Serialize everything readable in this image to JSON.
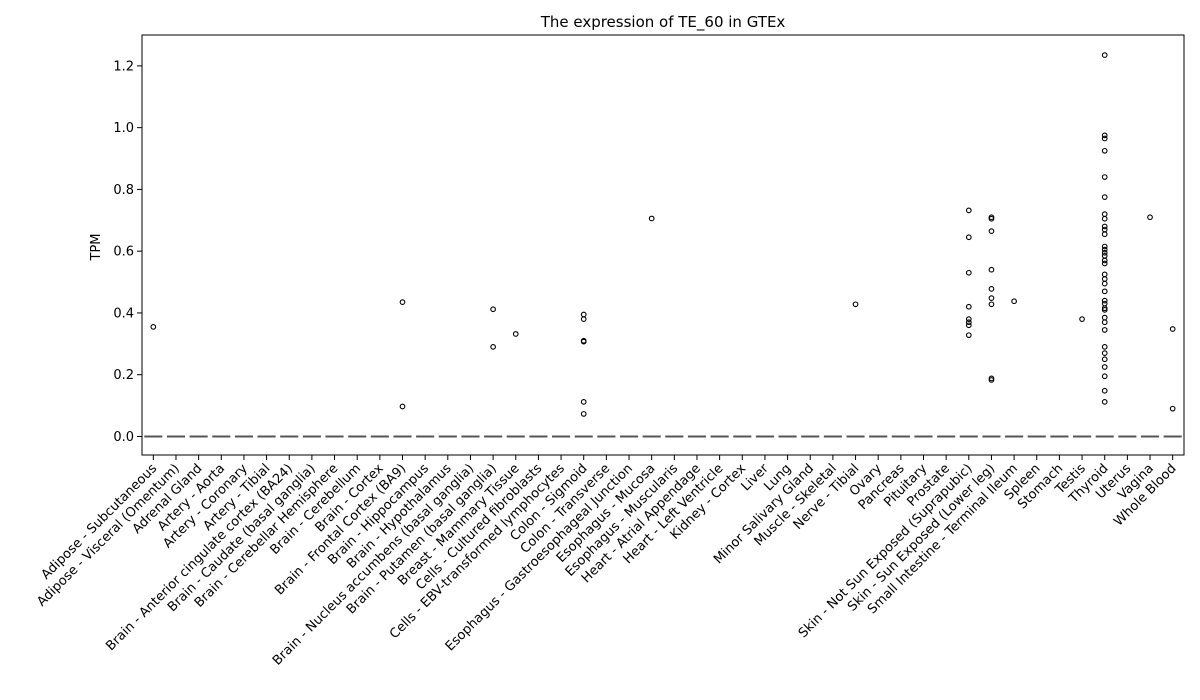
{
  "chart_data": {
    "type": "scatter",
    "title": "The expression of TE_60 in GTEx",
    "xlabel": "",
    "ylabel": "TPM",
    "ylim": [
      -0.06,
      1.3
    ],
    "yticks": [
      "0.0",
      "0.2",
      "0.4",
      "0.6",
      "0.8",
      "1.0",
      "1.2"
    ],
    "grid": false,
    "categories": [
      "Adipose - Subcutaneous",
      "Adipose - Visceral (Omentum)",
      "Adrenal Gland",
      "Artery - Aorta",
      "Artery - Coronary",
      "Artery - Tibial",
      "Brain - Anterior cingulate cortex (BA24)",
      "Brain - Caudate (basal ganglia)",
      "Brain - Cerebellar Hemisphere",
      "Brain - Cerebellum",
      "Brain - Cortex",
      "Brain - Frontal Cortex (BA9)",
      "Brain - Hippocampus",
      "Brain - Hypothalamus",
      "Brain - Nucleus accumbens (basal ganglia)",
      "Brain - Putamen (basal ganglia)",
      "Breast - Mammary Tissue",
      "Cells - Cultured fibroblasts",
      "Cells - EBV-transformed lymphocytes",
      "Colon - Sigmoid",
      "Colon - Transverse",
      "Esophagus - Gastroesophageal Junction",
      "Esophagus - Mucosa",
      "Esophagus - Muscularis",
      "Heart - Atrial Appendage",
      "Heart - Left Ventricle",
      "Kidney - Cortex",
      "Liver",
      "Lung",
      "Minor Salivary Gland",
      "Muscle - Skeletal",
      "Nerve - Tibial",
      "Ovary",
      "Pancreas",
      "Pituitary",
      "Prostate",
      "Skin - Not Sun Exposed (Suprapubic)",
      "Skin - Sun Exposed (Lower leg)",
      "Small Intestine - Terminal Ileum",
      "Spleen",
      "Stomach",
      "Testis",
      "Thyroid",
      "Uterus",
      "Vagina",
      "Whole Blood"
    ],
    "median": [
      0,
      0,
      0,
      0,
      0,
      0,
      0,
      0,
      0,
      0,
      0,
      0,
      0,
      0,
      0,
      0,
      0,
      0,
      0,
      0,
      0,
      0,
      0,
      0,
      0,
      0,
      0,
      0,
      0,
      0,
      0,
      0,
      0,
      0,
      0,
      0,
      0,
      0,
      0,
      0,
      0,
      0,
      0,
      0,
      0,
      0
    ],
    "outliers": [
      {
        "category": "Adipose - Subcutaneous",
        "values": [
          0.355
        ]
      },
      {
        "category": "Brain - Frontal Cortex (BA9)",
        "values": [
          0.435,
          0.097
        ]
      },
      {
        "category": "Brain - Putamen (basal ganglia)",
        "values": [
          0.412,
          0.29
        ]
      },
      {
        "category": "Breast - Mammary Tissue",
        "values": [
          0.332
        ]
      },
      {
        "category": "Colon - Sigmoid",
        "values": [
          0.395,
          0.38,
          0.31,
          0.307,
          0.112,
          0.073
        ]
      },
      {
        "category": "Esophagus - Mucosa",
        "values": [
          0.706
        ]
      },
      {
        "category": "Nerve - Tibial",
        "values": [
          0.428
        ]
      },
      {
        "category": "Skin - Not Sun Exposed (Suprapubic)",
        "values": [
          0.732,
          0.645,
          0.53,
          0.42,
          0.38,
          0.37,
          0.36,
          0.328
        ]
      },
      {
        "category": "Skin - Sun Exposed (Lower leg)",
        "values": [
          0.71,
          0.705,
          0.665,
          0.54,
          0.478,
          0.448,
          0.428,
          0.188,
          0.183
        ]
      },
      {
        "category": "Small Intestine - Terminal Ileum",
        "values": [
          0.438
        ]
      },
      {
        "category": "Testis",
        "values": [
          0.38
        ]
      },
      {
        "category": "Thyroid",
        "values": [
          1.235,
          0.975,
          0.965,
          0.925,
          0.84,
          0.775,
          0.72,
          0.705,
          0.68,
          0.67,
          0.655,
          0.615,
          0.605,
          0.595,
          0.585,
          0.57,
          0.56,
          0.525,
          0.51,
          0.495,
          0.47,
          0.44,
          0.43,
          0.415,
          0.41,
          0.385,
          0.37,
          0.345,
          0.29,
          0.27,
          0.25,
          0.225,
          0.195,
          0.148,
          0.112
        ]
      },
      {
        "category": "Vagina",
        "values": [
          0.71
        ]
      },
      {
        "category": "Whole Blood",
        "values": [
          0.348,
          0.09
        ]
      }
    ]
  }
}
